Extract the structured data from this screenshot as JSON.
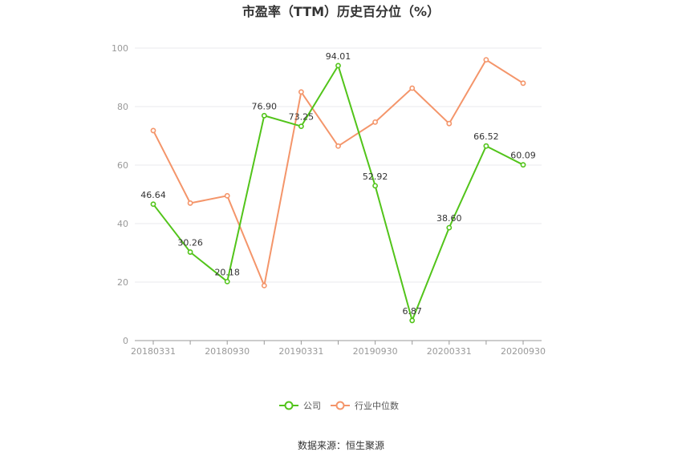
{
  "chart_data": {
    "type": "line",
    "title": "市盈率（TTM）历史百分位（%）",
    "x": [
      "20180331",
      "20180630",
      "20180930",
      "20181231",
      "20190331",
      "20190630",
      "20190930",
      "20191231",
      "20200331",
      "20200630",
      "20200930"
    ],
    "x_tick_labels": [
      "20180331",
      "20180930",
      "20190331",
      "20190930",
      "20200331",
      "20200930"
    ],
    "ylim": [
      0,
      100
    ],
    "y_ticks": [
      0,
      20,
      40,
      60,
      80,
      100
    ],
    "grid": true,
    "legend_position": "bottom",
    "series": [
      {
        "name": "公司",
        "color": "#52c41a",
        "values": [
          46.64,
          30.26,
          20.18,
          76.9,
          73.25,
          94.01,
          52.92,
          6.87,
          38.6,
          66.52,
          60.09
        ],
        "labels": [
          "46.64",
          "30.26",
          "20.18",
          "76.90",
          "73.25",
          "94.01",
          "52.92",
          "6.87",
          "38.60",
          "66.52",
          "60.09"
        ]
      },
      {
        "name": "行业中位数",
        "color": "#f4956a",
        "values": [
          71.8,
          47.0,
          49.5,
          18.8,
          85.0,
          66.5,
          74.7,
          86.3,
          74.2,
          96.0,
          88.0
        ]
      }
    ]
  },
  "source": "数据来源：恒生聚源"
}
